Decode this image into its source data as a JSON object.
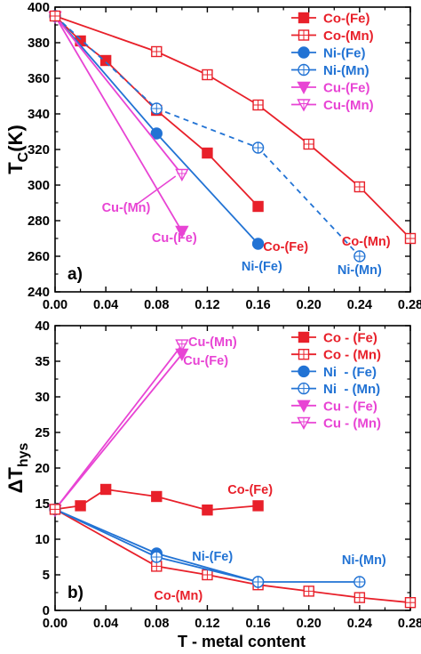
{
  "colors": {
    "co": "#e8202a",
    "ni": "#2273d4",
    "cu": "#e844d4",
    "axis": "#000000"
  },
  "chart_data": [
    {
      "id": "a",
      "type": "line",
      "panel_label": "a)",
      "ylabel_main": "T",
      "ylabel_sub": "C",
      "ylabel_tail": "(K)",
      "xlim": [
        0,
        0.28
      ],
      "ylim": [
        240,
        400
      ],
      "x_ticks": [
        "0.00",
        "0.04",
        "0.08",
        "0.12",
        "0.16",
        "0.20",
        "0.24",
        "0.28"
      ],
      "y_ticks": [
        "240",
        "260",
        "280",
        "300",
        "320",
        "340",
        "360",
        "380",
        "400"
      ],
      "legend_position": "top-right",
      "series": [
        {
          "key": "co_fe",
          "name": "Co-(Fe)",
          "color": "co",
          "marker": "square-filled",
          "line": "solid",
          "x": [
            0.0,
            0.02,
            0.04,
            0.08,
            0.12,
            0.16
          ],
          "y": [
            395,
            381,
            370,
            342,
            318,
            288
          ]
        },
        {
          "key": "co_mn",
          "name": "Co-(Mn)",
          "color": "co",
          "marker": "square-crossed",
          "line": "solid",
          "x": [
            0.0,
            0.08,
            0.12,
            0.16,
            0.2,
            0.24,
            0.28
          ],
          "y": [
            395,
            375,
            362,
            345,
            323,
            299,
            270
          ]
        },
        {
          "key": "ni_fe",
          "name": "Ni-(Fe)",
          "color": "ni",
          "marker": "circle-filled",
          "line": "solid",
          "x": [
            0.0,
            0.08,
            0.16
          ],
          "y": [
            395,
            329,
            267
          ]
        },
        {
          "key": "ni_mn",
          "name": "Ni-(Mn)",
          "color": "ni",
          "marker": "circle-crossed",
          "line": "dashed",
          "x": [
            0.0,
            0.08,
            0.16,
            0.24
          ],
          "y": [
            395,
            343,
            321,
            260
          ]
        },
        {
          "key": "cu_fe",
          "name": "Cu-(Fe)",
          "color": "cu",
          "marker": "triangle-down-filled",
          "line": "solid",
          "x": [
            0.0,
            0.1
          ],
          "y": [
            395,
            274
          ]
        },
        {
          "key": "cu_mn",
          "name": "Cu-(Mn)",
          "color": "cu",
          "marker": "triangle-down-crossed",
          "line": "solid",
          "x": [
            0.0,
            0.1
          ],
          "y": [
            395,
            306
          ]
        }
      ],
      "annotations": [
        {
          "text": "Co-(Fe)",
          "color": "co",
          "x": 0.164,
          "y": 263,
          "anchor": "start"
        },
        {
          "text": "Co-(Mn)",
          "color": "co",
          "x": 0.226,
          "y": 266,
          "anchor": "start"
        },
        {
          "text": "Ni-(Fe)",
          "color": "ni",
          "x": 0.163,
          "y": 252,
          "anchor": "middle"
        },
        {
          "text": "Ni-(Mn)",
          "color": "ni",
          "x": 0.24,
          "y": 250,
          "anchor": "middle"
        },
        {
          "text": "Cu-(Fe)",
          "color": "cu",
          "x": 0.094,
          "y": 268,
          "anchor": "middle"
        },
        {
          "text": "Cu-(Mn)",
          "color": "cu",
          "x": 0.056,
          "y": 285,
          "anchor": "middle"
        }
      ]
    },
    {
      "id": "b",
      "type": "line",
      "panel_label": "b)",
      "ylabel_main": "ΔT",
      "ylabel_sub": "hys",
      "ylabel_tail": "",
      "xlim": [
        0,
        0.28
      ],
      "ylim": [
        0,
        40
      ],
      "xlabel": "T - metal content",
      "x_ticks": [
        "0.00",
        "0.04",
        "0.08",
        "0.12",
        "0.16",
        "0.20",
        "0.24",
        "0.28"
      ],
      "y_ticks": [
        "0",
        "5",
        "10",
        "15",
        "20",
        "25",
        "30",
        "35",
        "40"
      ],
      "legend_position": "top-right",
      "series": [
        {
          "key": "co_fe",
          "name": "Co - (Fe)",
          "color": "co",
          "marker": "square-filled",
          "line": "solid",
          "x": [
            0.0,
            0.02,
            0.04,
            0.08,
            0.12,
            0.16
          ],
          "y": [
            14.2,
            14.7,
            17.0,
            16.0,
            14.1,
            14.7
          ]
        },
        {
          "key": "co_mn",
          "name": "Co - (Mn)",
          "color": "co",
          "marker": "square-crossed",
          "line": "solid",
          "x": [
            0.0,
            0.08,
            0.12,
            0.16,
            0.2,
            0.24,
            0.28
          ],
          "y": [
            14.2,
            6.2,
            5.0,
            3.6,
            2.7,
            1.8,
            1.1
          ]
        },
        {
          "key": "ni_fe",
          "name": "Ni  - (Fe)",
          "color": "ni",
          "marker": "circle-filled",
          "line": "solid",
          "x": [
            0.0,
            0.08,
            0.16
          ],
          "y": [
            14.2,
            8.0,
            4.0
          ]
        },
        {
          "key": "ni_mn",
          "name": "Ni  - (Mn)",
          "color": "ni",
          "marker": "circle-crossed",
          "line": "solid",
          "x": [
            0.0,
            0.08,
            0.16,
            0.24
          ],
          "y": [
            14.2,
            7.5,
            4.0,
            4.0
          ]
        },
        {
          "key": "cu_fe",
          "name": "Cu - (Fe)",
          "color": "cu",
          "marker": "triangle-down-filled",
          "line": "solid",
          "x": [
            0.0,
            0.1
          ],
          "y": [
            14.2,
            36.0
          ]
        },
        {
          "key": "cu_mn",
          "name": "Cu - (Mn)",
          "color": "cu",
          "marker": "triangle-down-crossed",
          "line": "solid",
          "x": [
            0.0,
            0.1
          ],
          "y": [
            14.2,
            37.3
          ]
        }
      ],
      "annotations": [
        {
          "text": "Cu-(Mn)",
          "color": "cu",
          "x": 0.105,
          "y": 37.1,
          "anchor": "start"
        },
        {
          "text": "Cu-(Fe)",
          "color": "cu",
          "x": 0.101,
          "y": 34.5,
          "anchor": "start"
        },
        {
          "text": "Co-(Fe)",
          "color": "co",
          "x": 0.136,
          "y": 16.4,
          "anchor": "start"
        },
        {
          "text": "Ni-(Fe)",
          "color": "ni",
          "x": 0.108,
          "y": 7.0,
          "anchor": "start"
        },
        {
          "text": "Ni-(Mn)",
          "color": "ni",
          "x": 0.226,
          "y": 6.5,
          "anchor": "start"
        },
        {
          "text": "Co-(Mn)",
          "color": "co",
          "x": 0.078,
          "y": 1.5,
          "anchor": "start"
        }
      ]
    }
  ]
}
